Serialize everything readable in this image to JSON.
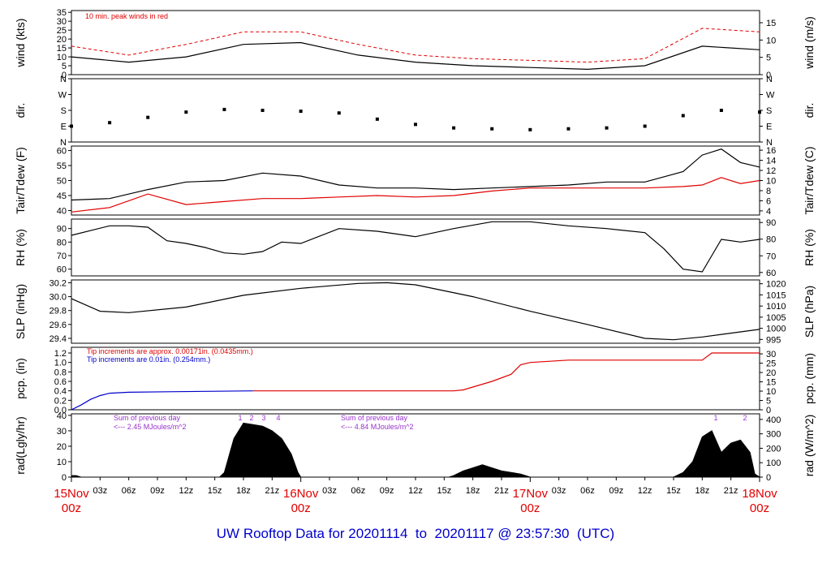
{
  "title": {
    "prefix": "UW Rooftop Data for ",
    "start": "20201114",
    "to": "  to  ",
    "end": "20201117 @ 23:57:30",
    "tz": "  (UTC)"
  },
  "x_axis": {
    "day_labels": [
      {
        "date": "15Nov",
        "hour": "00z"
      },
      {
        "date": "16Nov",
        "hour": "00z"
      },
      {
        "date": "17Nov",
        "hour": "00z"
      },
      {
        "date": "18Nov",
        "hour": "00z"
      }
    ],
    "hour_ticks": [
      "03z",
      "06z",
      "09z",
      "12z",
      "15z",
      "18z",
      "21z",
      "03z",
      "06z",
      "09z",
      "12z",
      "15z",
      "18z",
      "21z",
      "03z",
      "06z",
      "09z",
      "12z",
      "15z",
      "18z",
      "21z"
    ]
  },
  "colors": {
    "main": "#000000",
    "red": "#e00000",
    "blue": "#0000cc",
    "purple": "#9933cc"
  },
  "chart_data": [
    {
      "type": "line",
      "id": "wind",
      "ylabel_left": "wind (kts)",
      "ylabel_right": "wind (m/s)",
      "ylim": [
        0,
        36
      ],
      "yticks_left": [
        "0",
        "5",
        "10",
        "15",
        "20",
        "25",
        "30",
        "35"
      ],
      "yticks_right": [
        "0",
        "5",
        "10",
        "15"
      ],
      "annotation": "10 min. peak winds in red",
      "series": [
        {
          "name": "wind",
          "color": "#000000",
          "x_hours": [
            0,
            6,
            12,
            18,
            24,
            30,
            36,
            42,
            48,
            54,
            60,
            66,
            72
          ],
          "values": [
            10,
            7,
            10,
            17,
            18,
            11,
            7,
            5,
            4,
            3,
            5,
            16,
            14
          ]
        },
        {
          "name": "10 min. peak winds",
          "color": "#e00000",
          "x_hours": [
            0,
            6,
            12,
            18,
            24,
            30,
            36,
            42,
            48,
            54,
            60,
            66,
            72
          ],
          "values": [
            16,
            11,
            17,
            24,
            24,
            17,
            11,
            9,
            8,
            7,
            9,
            26,
            24
          ]
        }
      ]
    },
    {
      "type": "scatter",
      "id": "dir",
      "ylabel_left": "dir.",
      "ylabel_right": "dir.",
      "yticks_left": [
        "N",
        "E",
        "S",
        "W",
        "N"
      ],
      "yticks_right": [
        "N",
        "E",
        "S",
        "W",
        "N"
      ],
      "ylim": [
        0,
        360
      ],
      "series": [
        {
          "name": "direction",
          "color": "#000000",
          "x_hours": [
            0,
            4,
            8,
            12,
            16,
            20,
            24,
            28,
            32,
            36,
            40,
            44,
            48,
            52,
            56,
            60,
            64,
            68,
            72
          ],
          "values": [
            90,
            110,
            140,
            170,
            185,
            180,
            175,
            165,
            130,
            100,
            80,
            75,
            70,
            75,
            80,
            90,
            150,
            180,
            170
          ]
        }
      ]
    },
    {
      "type": "line",
      "id": "temp",
      "ylabel_left": "Tair/Tdew (F)",
      "ylabel_right": "Tair/Tdew (C)",
      "ylim": [
        38.5,
        61.5
      ],
      "yticks_left": [
        "40",
        "45",
        "50",
        "55",
        "60"
      ],
      "yticks_right": [
        "4",
        "6",
        "8",
        "10",
        "12",
        "14",
        "16"
      ],
      "series": [
        {
          "name": "Tair",
          "color": "#000000",
          "x_hours": [
            0,
            4,
            8,
            12,
            16,
            20,
            24,
            28,
            32,
            36,
            40,
            44,
            48,
            52,
            56,
            60,
            64,
            66,
            68,
            70,
            72
          ],
          "values": [
            43.5,
            44,
            47,
            49.5,
            50,
            52.5,
            51.5,
            48.5,
            47.5,
            47.5,
            47,
            47.5,
            48,
            48.5,
            49.5,
            49.5,
            53,
            58.5,
            60.5,
            56,
            54.5
          ]
        },
        {
          "name": "Tdew",
          "color": "#e00000",
          "x_hours": [
            0,
            4,
            8,
            12,
            16,
            20,
            24,
            28,
            32,
            36,
            40,
            44,
            48,
            52,
            56,
            60,
            64,
            66,
            68,
            70,
            72
          ],
          "values": [
            39.5,
            41,
            45.5,
            42,
            43,
            44,
            44,
            44.5,
            45,
            44.5,
            45,
            46.5,
            47.5,
            47.5,
            47.5,
            47.5,
            48,
            48.5,
            51,
            49,
            50
          ]
        }
      ]
    },
    {
      "type": "line",
      "id": "rh",
      "ylabel_left": "RH (%)",
      "ylabel_right": "RH (%)",
      "ylim": [
        55,
        97
      ],
      "yticks_left": [
        "60",
        "70",
        "80",
        "90"
      ],
      "yticks_right": [
        "60",
        "70",
        "80",
        "90"
      ],
      "series": [
        {
          "name": "RH",
          "color": "#000000",
          "x_hours": [
            0,
            4,
            6,
            8,
            10,
            12,
            14,
            16,
            18,
            20,
            22,
            24,
            28,
            32,
            36,
            40,
            44,
            48,
            52,
            56,
            60,
            62,
            64,
            66,
            68,
            70,
            72
          ],
          "values": [
            85,
            92,
            92,
            91,
            81,
            79,
            76,
            72,
            71,
            73,
            80,
            79,
            90,
            88,
            84,
            90,
            95,
            95,
            92,
            90,
            87,
            75,
            60,
            58,
            82,
            80,
            82
          ]
        }
      ]
    },
    {
      "type": "line",
      "id": "slp",
      "ylabel_left": "SLP (inHg)",
      "ylabel_right": "SLP (hPa)",
      "ylim": [
        29.33,
        30.24
      ],
      "yticks_left": [
        "29.4",
        "29.6",
        "29.8",
        "30.0",
        "30.2"
      ],
      "yticks_right": [
        "995",
        "1000",
        "1005",
        "1010",
        "1015",
        "1020"
      ],
      "series": [
        {
          "name": "SLP",
          "color": "#000000",
          "x_hours": [
            0,
            3,
            6,
            12,
            18,
            24,
            30,
            33,
            36,
            42,
            48,
            54,
            60,
            63,
            66,
            72
          ],
          "values": [
            29.97,
            29.79,
            29.77,
            29.85,
            30.02,
            30.12,
            30.19,
            30.2,
            30.17,
            30.0,
            29.79,
            29.6,
            29.4,
            29.38,
            29.42,
            29.53
          ]
        }
      ]
    },
    {
      "type": "line",
      "id": "pcp",
      "ylabel_left": "pcp. (in)",
      "ylabel_right": "pcp. (mm)",
      "ylim": [
        0,
        1.32
      ],
      "yticks_left": [
        "0.0",
        "0.2",
        "0.4",
        "0.6",
        "0.8",
        "1.0",
        "1.2"
      ],
      "yticks_right": [
        "0",
        "5",
        "10",
        "15",
        "20",
        "25",
        "30"
      ],
      "notes": [
        {
          "text": "Tip increments are approx. 0.00171in. (0.0435mm.)",
          "color": "#e00000"
        },
        {
          "text": "Tip increments are 0.01in. (0.254mm.)",
          "color": "#0000cc"
        }
      ],
      "series": [
        {
          "name": "tipping bucket (0.01in.)",
          "color": "#0000cc",
          "x_hours": [
            0,
            1,
            2,
            3,
            4,
            6,
            10,
            14,
            19
          ],
          "values": [
            0,
            0.1,
            0.22,
            0.3,
            0.35,
            0.37,
            0.38,
            0.39,
            0.4
          ]
        },
        {
          "name": "rain gauge (0.00171in.)",
          "color": "#e00000",
          "x_hours": [
            19,
            24,
            30,
            36,
            40,
            41,
            44,
            46,
            47,
            48,
            52,
            56,
            60,
            66,
            67,
            72
          ],
          "values": [
            0.4,
            0.4,
            0.4,
            0.4,
            0.4,
            0.42,
            0.6,
            0.75,
            0.95,
            1.0,
            1.05,
            1.05,
            1.05,
            1.05,
            1.2,
            1.2
          ]
        }
      ]
    },
    {
      "type": "area",
      "id": "rad",
      "ylabel_left": "rad(Lgly/hr)",
      "ylabel_right": "rad (W/m^2)",
      "ylim": [
        0,
        41
      ],
      "yticks_left": [
        "0",
        "10",
        "20",
        "30",
        "40"
      ],
      "yticks_right": [
        "0",
        "100",
        "200",
        "300",
        "400"
      ],
      "notes": [
        {
          "line1": "Sum of previous day",
          "line2": "<--- 2.45 MJoules/m^2"
        },
        {
          "line1": "Sum of previous day",
          "line2": "<--- 4.84 MJoules/m^2"
        }
      ],
      "peak_labels": [
        "1",
        "2",
        "3",
        "4",
        "1",
        "2"
      ],
      "series": [
        {
          "name": "radiation",
          "color": "#000000",
          "x_hours": [
            0,
            0.5,
            1,
            15.5,
            16,
            17,
            18,
            19,
            20,
            21,
            22,
            23,
            23.7,
            24,
            39.5,
            40,
            41,
            42,
            43,
            44,
            45,
            46,
            47,
            48,
            63,
            64,
            65,
            66,
            67,
            68,
            69,
            70,
            71,
            71.5,
            72
          ],
          "values": [
            1,
            1,
            0,
            0,
            3,
            25,
            35,
            34,
            33,
            30,
            25,
            15,
            3,
            0,
            0,
            1,
            4,
            6,
            8,
            6,
            4,
            3,
            2,
            0,
            0,
            3,
            10,
            26,
            30,
            16,
            22,
            24,
            16,
            2,
            0
          ]
        }
      ]
    }
  ]
}
